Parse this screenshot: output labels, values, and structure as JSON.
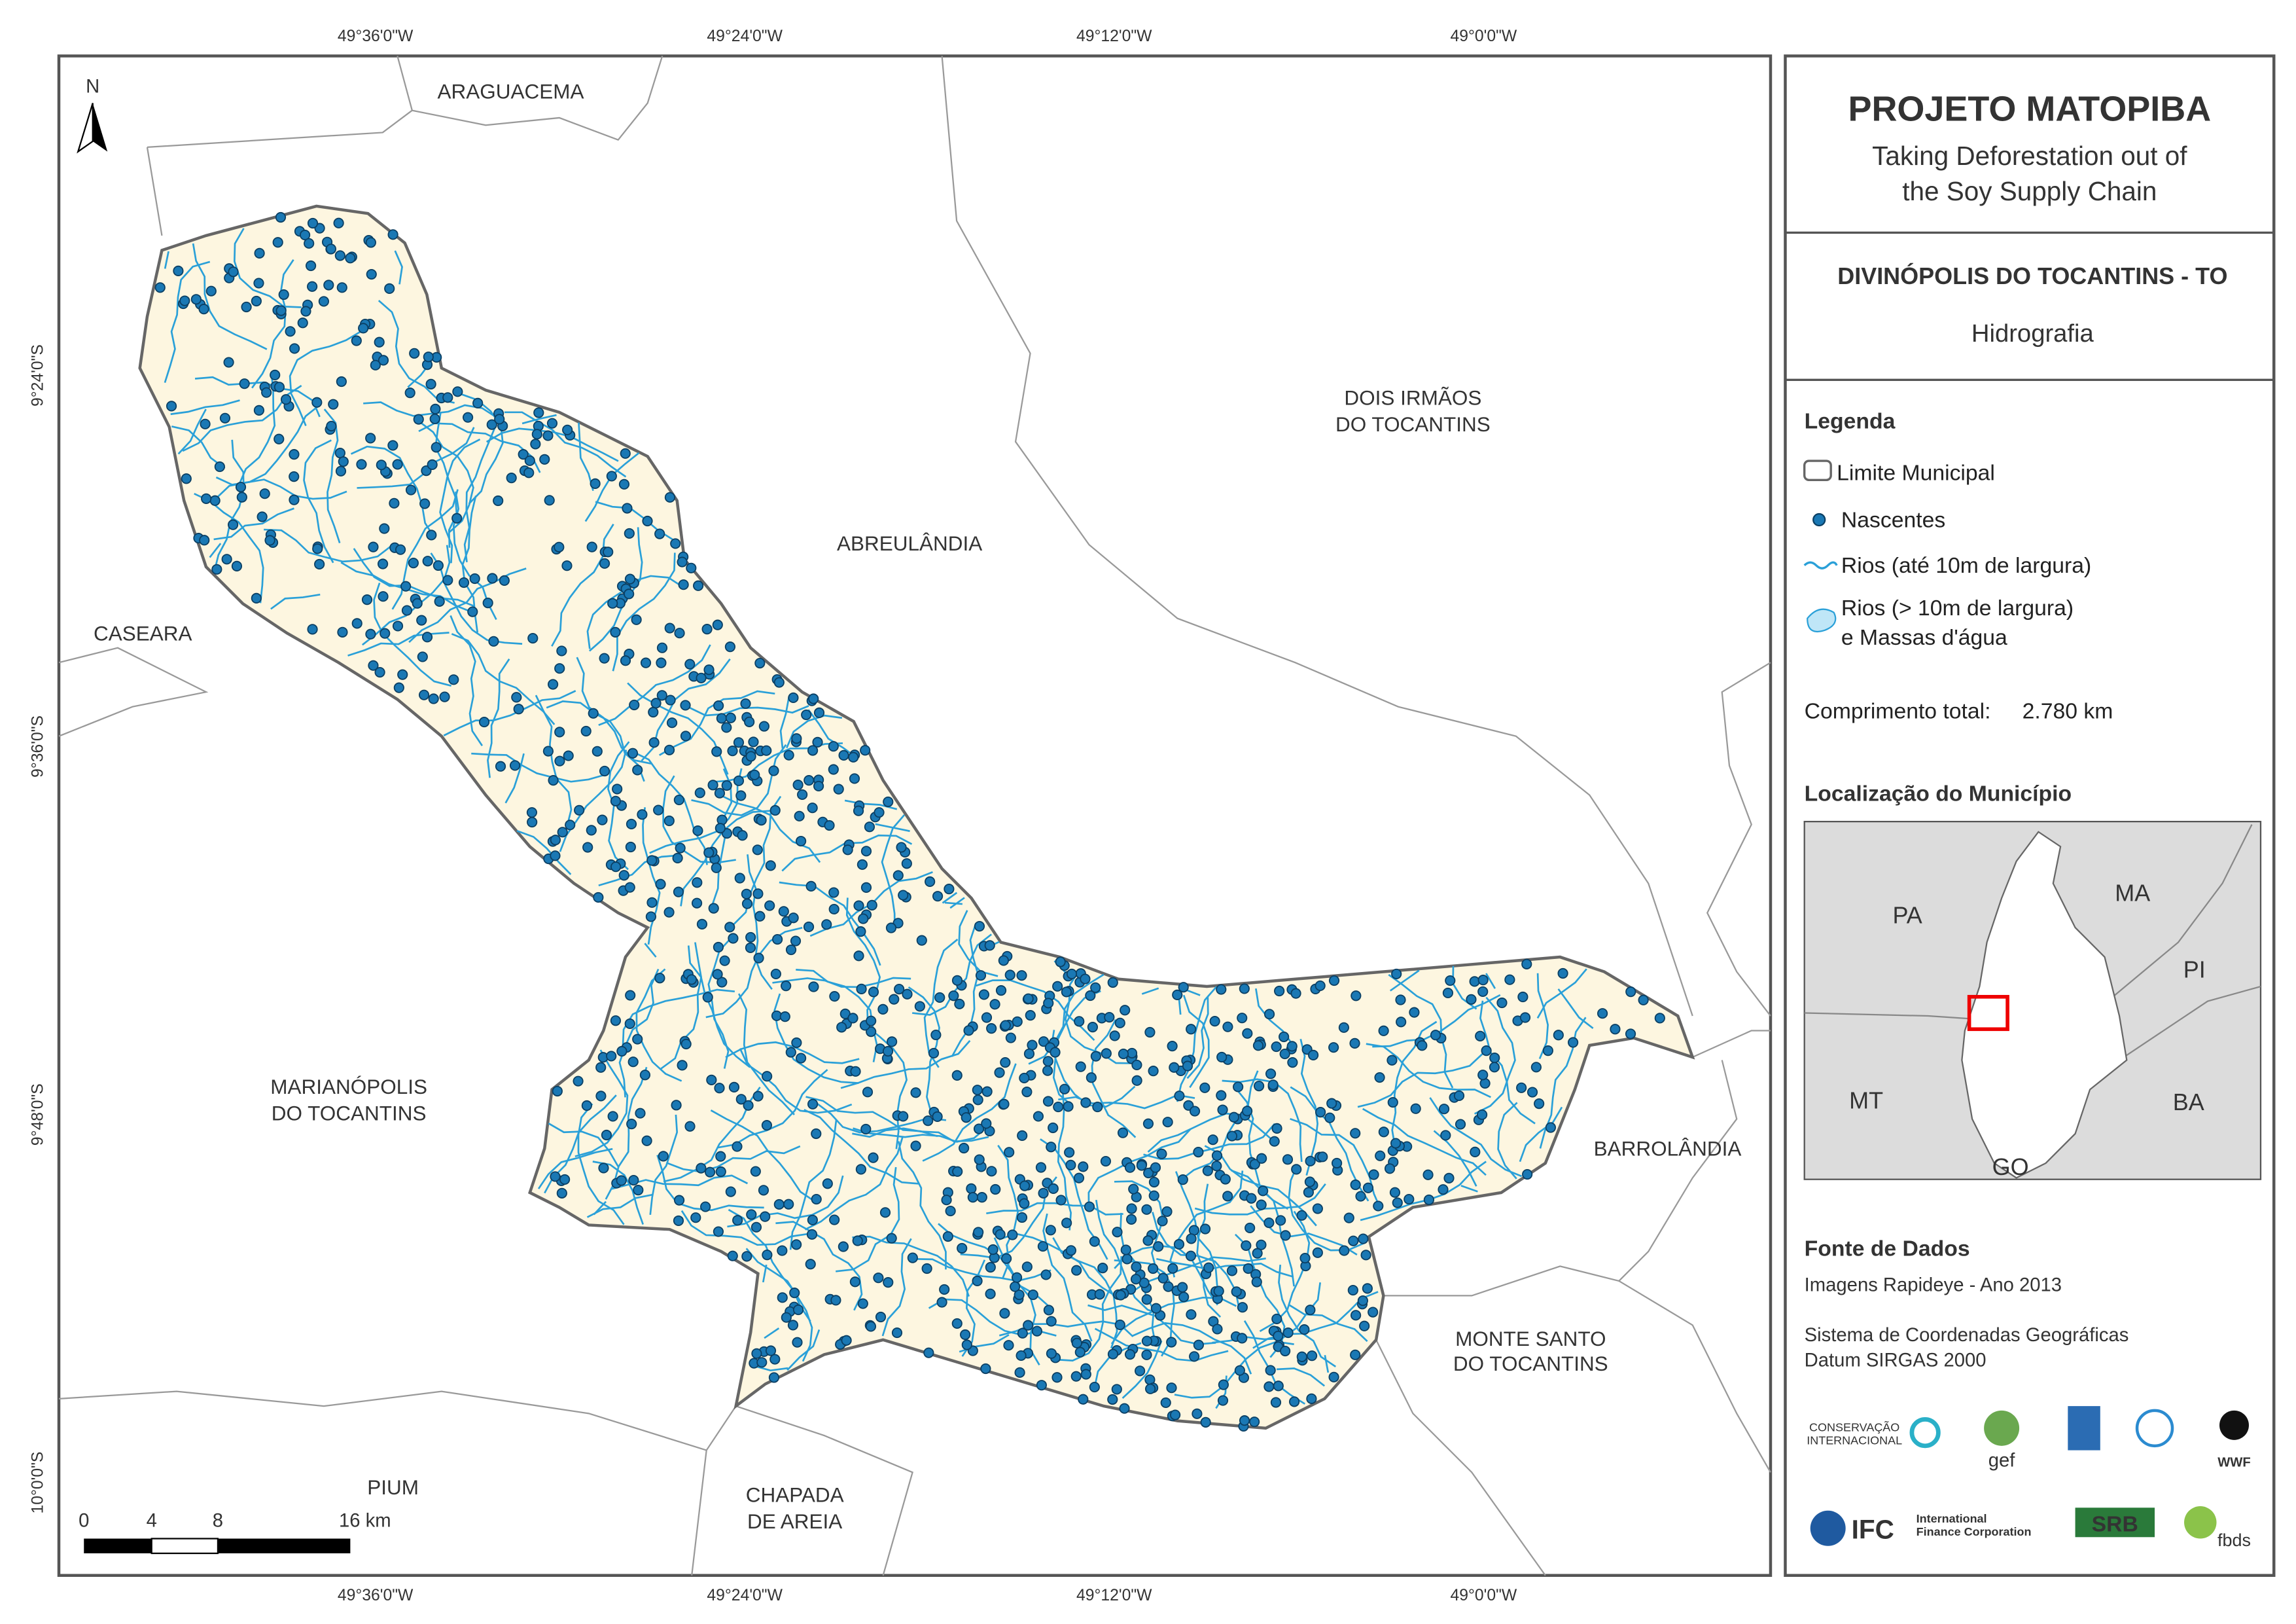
{
  "map": {
    "north_arrow": "N",
    "coordinates": {
      "top": [
        "49°36'0\"W",
        "49°24'0\"W",
        "49°12'0\"W",
        "49°0'0\"W"
      ],
      "bottom": [
        "49°36'0\"W",
        "49°24'0\"W",
        "49°12'0\"W",
        "49°0'0\"W"
      ],
      "left": [
        "9°24'0\"S",
        "9°36'0\"S",
        "9°48'0\"S",
        "10°0'0\"S"
      ]
    },
    "places": [
      {
        "lines": [
          "ARAGUACEMA"
        ]
      },
      {
        "lines": [
          "DOIS IRMÃOS",
          "DO TOCANTINS"
        ]
      },
      {
        "lines": [
          "ABREULÂNDIA"
        ]
      },
      {
        "lines": [
          "CASEARA"
        ]
      },
      {
        "lines": [
          "MARIANÓPOLIS",
          "DO TOCANTINS"
        ]
      },
      {
        "lines": [
          "BARROLÂNDIA"
        ]
      },
      {
        "lines": [
          "MONTE SANTO",
          "DO TOCANTINS"
        ]
      },
      {
        "lines": [
          "PIUM"
        ]
      },
      {
        "lines": [
          "CHAPADA",
          "DE AREIA"
        ]
      }
    ],
    "scale_bar": [
      "0",
      "4",
      "8",
      "16 km"
    ]
  },
  "panel": {
    "title": "PROJETO MATOPIBA",
    "subtitle": [
      "Taking Deforestation out of",
      "the Soy Supply Chain"
    ],
    "municipality": "DIVINÓPOLIS DO TOCANTINS - TO",
    "theme": "Hidrografia"
  },
  "legend": {
    "title": "Legenda",
    "items": [
      "Limite Municipal",
      "Nascentes",
      "Rios (até 10m de largura)",
      "Rios (> 10m de largura)",
      "e Massas d'água"
    ],
    "total_label": "Comprimento total:",
    "total_value": "2.780 km"
  },
  "location": {
    "title": "Localização do Município",
    "states": [
      "PA",
      "MA",
      "PI",
      "MT",
      "BA",
      "GO"
    ]
  },
  "sources": {
    "title": "Fonte de Dados",
    "lines": [
      "Imagens Rapideye - Ano 2013",
      "Sistema de Coordenadas Geográficas",
      "Datum SIRGAS 2000"
    ]
  },
  "logos": [
    "CONSERVAÇÃO",
    "INTERNACIONAL",
    "gef",
    "WWF",
    "IFC",
    "International",
    "Finance Corporation",
    "SRB",
    "fbds"
  ]
}
